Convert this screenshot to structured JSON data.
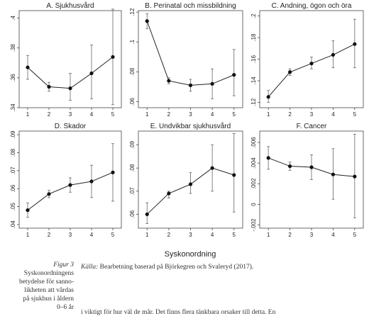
{
  "caption": {
    "figure_label": "Figur 3",
    "lines": [
      "Syskonordningens",
      "betydelse för sanno-",
      "likheten att vårdas",
      "på sjukhus i åldern",
      "0–6 år"
    ]
  },
  "source": {
    "label": "Källa:",
    "text": "Bearbetning baserad på Björkegren och Svaleryd (2017)."
  },
  "body_text": "i viktigt för hur väl de mår. Det finns flera tänkbara orsaker till detta. En",
  "x_axis_label": "Syskonordning",
  "chart_data": [
    {
      "type": "line",
      "title": "A. Sjukhusvård",
      "x": [
        1,
        2,
        3,
        4,
        5
      ],
      "y": [
        0.367,
        0.354,
        0.353,
        0.363,
        0.374
      ],
      "ci_low": [
        0.359,
        0.351,
        0.345,
        0.346,
        0.342
      ],
      "ci_high": [
        0.375,
        0.357,
        0.363,
        0.382,
        0.406
      ],
      "ylim": [
        0.34,
        0.405
      ],
      "yticks": [
        0.34,
        0.36,
        0.38,
        0.4
      ],
      "ytick_labels": [
        ".34",
        ".36",
        ".38",
        ".4"
      ]
    },
    {
      "type": "line",
      "title": "B. Perinatal och missbildning",
      "x": [
        1,
        2,
        3,
        4,
        5
      ],
      "y": [
        0.114,
        0.074,
        0.071,
        0.072,
        0.078
      ],
      "ci_low": [
        0.109,
        0.072,
        0.067,
        0.062,
        0.064
      ],
      "ci_high": [
        0.119,
        0.076,
        0.075,
        0.082,
        0.095
      ],
      "ylim": [
        0.056,
        0.121
      ],
      "yticks": [
        0.06,
        0.08,
        0.1,
        0.12
      ],
      "ytick_labels": [
        ".06",
        ".08",
        ".1",
        ".12"
      ]
    },
    {
      "type": "line",
      "title": "C. Andning, ögon och öra",
      "x": [
        1,
        2,
        3,
        4,
        5
      ],
      "y": [
        0.125,
        0.148,
        0.156,
        0.164,
        0.174
      ],
      "ci_low": [
        0.12,
        0.145,
        0.151,
        0.152,
        0.152
      ],
      "ci_high": [
        0.131,
        0.151,
        0.162,
        0.177,
        0.197
      ],
      "ylim": [
        0.115,
        0.205
      ],
      "yticks": [
        0.12,
        0.14,
        0.16,
        0.18,
        0.2
      ],
      "ytick_labels": [
        ".12",
        ".14",
        ".16",
        ".18",
        ".2"
      ]
    },
    {
      "type": "line",
      "title": "D. Skador",
      "x": [
        1,
        2,
        3,
        4,
        5
      ],
      "y": [
        0.048,
        0.057,
        0.062,
        0.064,
        0.069
      ],
      "ci_low": [
        0.044,
        0.055,
        0.058,
        0.055,
        0.053
      ],
      "ci_high": [
        0.052,
        0.059,
        0.066,
        0.073,
        0.085
      ],
      "ylim": [
        0.038,
        0.092
      ],
      "yticks": [
        0.04,
        0.05,
        0.06,
        0.07,
        0.08,
        0.09
      ],
      "ytick_labels": [
        ".04",
        ".05",
        ".06",
        ".07",
        ".08",
        ".09"
      ]
    },
    {
      "type": "line",
      "title": "E. Undvikbar sjukhusvård",
      "x": [
        1,
        2,
        3,
        4,
        5
      ],
      "y": [
        0.06,
        0.069,
        0.073,
        0.08,
        0.077
      ],
      "ci_low": [
        0.056,
        0.067,
        0.069,
        0.07,
        0.061
      ],
      "ci_high": [
        0.065,
        0.07,
        0.078,
        0.09,
        0.095
      ],
      "ylim": [
        0.054,
        0.096
      ],
      "yticks": [
        0.06,
        0.07,
        0.08,
        0.09
      ],
      "ytick_labels": [
        ".06",
        ".07",
        ".08",
        ".09"
      ]
    },
    {
      "type": "line",
      "title": "F. Cancer",
      "x": [
        1,
        2,
        3,
        4,
        5
      ],
      "y": [
        0.0045,
        0.0037,
        0.0036,
        0.0029,
        0.0027
      ],
      "ci_low": [
        0.0034,
        0.0033,
        0.0024,
        0.0005,
        -0.0013
      ],
      "ci_high": [
        0.0056,
        0.0041,
        0.0048,
        0.0054,
        0.0068
      ],
      "ylim": [
        -0.0023,
        0.0071
      ],
      "yticks": [
        -0.002,
        0,
        0.002,
        0.004,
        0.006
      ],
      "ytick_labels": [
        "-.002",
        "0",
        ".002",
        ".004",
        ".006"
      ]
    }
  ]
}
